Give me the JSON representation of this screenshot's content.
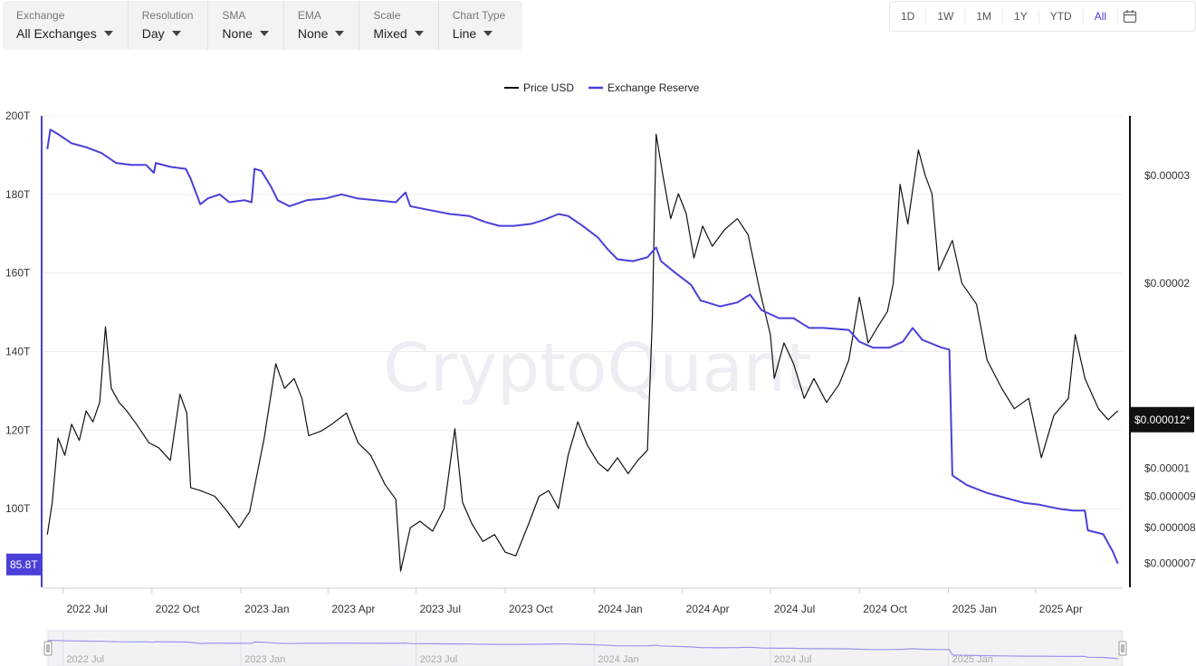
{
  "toolbar": {
    "exchange": {
      "label": "Exchange",
      "value": "All Exchanges"
    },
    "resolution": {
      "label": "Resolution",
      "value": "Day"
    },
    "sma": {
      "label": "SMA",
      "value": "None"
    },
    "ema": {
      "label": "EMA",
      "value": "None"
    },
    "scale": {
      "label": "Scale",
      "value": "Mixed"
    },
    "chart_type": {
      "label": "Chart Type",
      "value": "Line"
    }
  },
  "ranges": [
    "1D",
    "1W",
    "1M",
    "1Y",
    "YTD",
    "All"
  ],
  "active_range": "All",
  "watermark": "CryptoQuant",
  "colors": {
    "reserve": "#4a3fd8",
    "price": "#111111",
    "grid": "#ececec",
    "navigator": "#9b94ea"
  },
  "chart_data": {
    "type": "line",
    "legend": {
      "position": "top-center"
    },
    "left_axis": {
      "ticks": [
        "100T",
        "120T",
        "140T",
        "160T",
        "180T",
        "200T"
      ],
      "tick_values": [
        100,
        120,
        140,
        160,
        180,
        200
      ],
      "range": [
        80,
        200
      ],
      "current_label": "85.8T",
      "current_value": 85.8
    },
    "right_axis": {
      "scale": "log",
      "ticks": [
        "$0.000007",
        "$0.000008",
        "$0.000009",
        "$0.00001",
        "$0.00002",
        "$0.00003"
      ],
      "tick_values": [
        7e-06,
        8e-06,
        9e-06,
        1e-05,
        2e-05,
        3e-05
      ],
      "range": [
        6.4e-06,
        3.75e-05
      ],
      "current_label": "$0.000012*",
      "current_value": 1.2e-05
    },
    "x_ticks": [
      "2022 Jul",
      "2022 Oct",
      "2023 Jan",
      "2023 Apr",
      "2023 Jul",
      "2023 Oct",
      "2024 Jan",
      "2024 Apr",
      "2024 Jul",
      "2024 Oct",
      "2025 Jan",
      "2025 Apr"
    ],
    "x_tick_values": [
      "2022-07-01",
      "2022-10-01",
      "2023-01-01",
      "2023-04-01",
      "2023-07-01",
      "2023-10-01",
      "2024-01-01",
      "2024-04-01",
      "2024-07-01",
      "2024-10-01",
      "2025-01-01",
      "2025-04-01"
    ],
    "x_range": [
      "2022-06-10",
      "2025-06-30"
    ],
    "navigator_ticks": [
      "2022 Jul",
      "2023 Jan",
      "2023 Jul",
      "2024 Jan",
      "2024 Jul",
      "2025 Jan"
    ],
    "navigator_tick_values": [
      "2022-07-01",
      "2023-01-01",
      "2023-07-01",
      "2024-01-01",
      "2024-07-01",
      "2025-01-01"
    ],
    "series": [
      {
        "name": "Price USD",
        "axis": "right",
        "points": [
          [
            "2022-06-15",
            7.8e-06
          ],
          [
            "2022-06-20",
            8.8e-06
          ],
          [
            "2022-06-26",
            1.12e-05
          ],
          [
            "2022-07-03",
            1.05e-05
          ],
          [
            "2022-07-10",
            1.18e-05
          ],
          [
            "2022-07-18",
            1.11e-05
          ],
          [
            "2022-07-25",
            1.24e-05
          ],
          [
            "2022-08-01",
            1.19e-05
          ],
          [
            "2022-08-08",
            1.28e-05
          ],
          [
            "2022-08-14",
            1.7e-05
          ],
          [
            "2022-08-20",
            1.35e-05
          ],
          [
            "2022-08-28",
            1.28e-05
          ],
          [
            "2022-09-05",
            1.24e-05
          ],
          [
            "2022-09-15",
            1.18e-05
          ],
          [
            "2022-09-28",
            1.1e-05
          ],
          [
            "2022-10-08",
            1.08e-05
          ],
          [
            "2022-10-20",
            1.03e-05
          ],
          [
            "2022-10-30",
            1.32e-05
          ],
          [
            "2022-11-06",
            1.23e-05
          ],
          [
            "2022-11-10",
            9.3e-06
          ],
          [
            "2022-11-20",
            9.2e-06
          ],
          [
            "2022-12-05",
            9e-06
          ],
          [
            "2022-12-18",
            8.5e-06
          ],
          [
            "2022-12-30",
            8e-06
          ],
          [
            "2023-01-10",
            8.5e-06
          ],
          [
            "2023-01-25",
            1.12e-05
          ],
          [
            "2023-02-06",
            1.48e-05
          ],
          [
            "2023-02-15",
            1.35e-05
          ],
          [
            "2023-02-25",
            1.4e-05
          ],
          [
            "2023-03-05",
            1.3e-05
          ],
          [
            "2023-03-12",
            1.13e-05
          ],
          [
            "2023-03-25",
            1.15e-05
          ],
          [
            "2023-04-05",
            1.18e-05
          ],
          [
            "2023-04-20",
            1.23e-05
          ],
          [
            "2023-05-02",
            1.1e-05
          ],
          [
            "2023-05-15",
            1.05e-05
          ],
          [
            "2023-05-30",
            9.4e-06
          ],
          [
            "2023-06-10",
            8.9e-06
          ],
          [
            "2023-06-15",
            6.8e-06
          ],
          [
            "2023-06-25",
            8e-06
          ],
          [
            "2023-07-05",
            8.2e-06
          ],
          [
            "2023-07-18",
            7.9e-06
          ],
          [
            "2023-07-30",
            8.6e-06
          ],
          [
            "2023-08-10",
            1.16e-05
          ],
          [
            "2023-08-18",
            8.8e-06
          ],
          [
            "2023-08-28",
            8.1e-06
          ],
          [
            "2023-09-08",
            7.6e-06
          ],
          [
            "2023-09-20",
            7.8e-06
          ],
          [
            "2023-10-01",
            7.3e-06
          ],
          [
            "2023-10-12",
            7.2e-06
          ],
          [
            "2023-10-25",
            8.1e-06
          ],
          [
            "2023-11-05",
            9e-06
          ],
          [
            "2023-11-15",
            9.2e-06
          ],
          [
            "2023-11-25",
            8.6e-06
          ],
          [
            "2023-12-05",
            1.05e-05
          ],
          [
            "2023-12-15",
            1.19e-05
          ],
          [
            "2023-12-25",
            1.09e-05
          ],
          [
            "2024-01-05",
            1.02e-05
          ],
          [
            "2024-01-15",
            9.9e-06
          ],
          [
            "2024-01-25",
            1.04e-05
          ],
          [
            "2024-02-05",
            9.8e-06
          ],
          [
            "2024-02-15",
            1.03e-05
          ],
          [
            "2024-02-25",
            1.07e-05
          ],
          [
            "2024-03-01",
            1.75e-05
          ],
          [
            "2024-03-05",
            3.5e-05
          ],
          [
            "2024-03-12",
            3e-05
          ],
          [
            "2024-03-20",
            2.55e-05
          ],
          [
            "2024-03-28",
            2.8e-05
          ],
          [
            "2024-04-05",
            2.6e-05
          ],
          [
            "2024-04-13",
            2.2e-05
          ],
          [
            "2024-04-22",
            2.48e-05
          ],
          [
            "2024-05-02",
            2.3e-05
          ],
          [
            "2024-05-15",
            2.45e-05
          ],
          [
            "2024-05-28",
            2.55e-05
          ],
          [
            "2024-06-08",
            2.4e-05
          ],
          [
            "2024-06-20",
            1.95e-05
          ],
          [
            "2024-07-01",
            1.65e-05
          ],
          [
            "2024-07-05",
            1.4e-05
          ],
          [
            "2024-07-15",
            1.6e-05
          ],
          [
            "2024-07-25",
            1.48e-05
          ],
          [
            "2024-08-05",
            1.3e-05
          ],
          [
            "2024-08-15",
            1.4e-05
          ],
          [
            "2024-08-28",
            1.28e-05
          ],
          [
            "2024-09-10",
            1.37e-05
          ],
          [
            "2024-09-20",
            1.5e-05
          ],
          [
            "2024-10-01",
            1.9e-05
          ],
          [
            "2024-10-10",
            1.6e-05
          ],
          [
            "2024-10-20",
            1.7e-05
          ],
          [
            "2024-10-30",
            1.8e-05
          ],
          [
            "2024-11-05",
            2e-05
          ],
          [
            "2024-11-12",
            2.9e-05
          ],
          [
            "2024-11-20",
            2.5e-05
          ],
          [
            "2024-12-01",
            3.3e-05
          ],
          [
            "2024-12-08",
            3e-05
          ],
          [
            "2024-12-15",
            2.8e-05
          ],
          [
            "2024-12-22",
            2.1e-05
          ],
          [
            "2025-01-05",
            2.35e-05
          ],
          [
            "2025-01-15",
            2e-05
          ],
          [
            "2025-01-30",
            1.85e-05
          ],
          [
            "2025-02-10",
            1.5e-05
          ],
          [
            "2025-02-25",
            1.35e-05
          ],
          [
            "2025-03-10",
            1.25e-05
          ],
          [
            "2025-03-25",
            1.3e-05
          ],
          [
            "2025-04-07",
            1.04e-05
          ],
          [
            "2025-04-20",
            1.22e-05
          ],
          [
            "2025-05-05",
            1.3e-05
          ],
          [
            "2025-05-12",
            1.65e-05
          ],
          [
            "2025-05-22",
            1.4e-05
          ],
          [
            "2025-06-05",
            1.25e-05
          ],
          [
            "2025-06-15",
            1.2e-05
          ],
          [
            "2025-06-25",
            1.24e-05
          ]
        ]
      },
      {
        "name": "Exchange Reserve",
        "axis": "left",
        "points": [
          [
            "2022-06-15",
            191.5
          ],
          [
            "2022-06-18",
            196.5
          ],
          [
            "2022-06-25",
            195.5
          ],
          [
            "2022-07-10",
            193.0
          ],
          [
            "2022-07-25",
            192.0
          ],
          [
            "2022-08-10",
            190.5
          ],
          [
            "2022-08-25",
            188.0
          ],
          [
            "2022-09-10",
            187.5
          ],
          [
            "2022-09-25",
            187.5
          ],
          [
            "2022-10-03",
            185.5
          ],
          [
            "2022-10-05",
            188.0
          ],
          [
            "2022-10-20",
            187.0
          ],
          [
            "2022-11-05",
            186.5
          ],
          [
            "2022-11-10",
            184.0
          ],
          [
            "2022-11-20",
            177.5
          ],
          [
            "2022-11-28",
            179.0
          ],
          [
            "2022-12-10",
            180.0
          ],
          [
            "2022-12-20",
            178.0
          ],
          [
            "2023-01-05",
            178.5
          ],
          [
            "2023-01-12",
            178.0
          ],
          [
            "2023-01-15",
            186.5
          ],
          [
            "2023-01-22",
            186.0
          ],
          [
            "2023-02-01",
            182.0
          ],
          [
            "2023-02-08",
            178.5
          ],
          [
            "2023-02-20",
            177.0
          ],
          [
            "2023-03-10",
            178.5
          ],
          [
            "2023-03-30",
            179.0
          ],
          [
            "2023-04-15",
            180.0
          ],
          [
            "2023-05-01",
            179.0
          ],
          [
            "2023-05-20",
            178.5
          ],
          [
            "2023-06-10",
            178.0
          ],
          [
            "2023-06-20",
            180.5
          ],
          [
            "2023-06-25",
            177.0
          ],
          [
            "2023-07-15",
            176.0
          ],
          [
            "2023-08-05",
            175.0
          ],
          [
            "2023-08-25",
            174.5
          ],
          [
            "2023-09-10",
            173.0
          ],
          [
            "2023-09-25",
            172.0
          ],
          [
            "2023-10-10",
            172.0
          ],
          [
            "2023-10-28",
            172.5
          ],
          [
            "2023-11-10",
            173.5
          ],
          [
            "2023-11-25",
            175.0
          ],
          [
            "2023-12-05",
            174.5
          ],
          [
            "2023-12-20",
            172.0
          ],
          [
            "2024-01-05",
            169.0
          ],
          [
            "2024-01-15",
            166.0
          ],
          [
            "2024-01-25",
            163.5
          ],
          [
            "2024-02-10",
            163.0
          ],
          [
            "2024-02-25",
            164.0
          ],
          [
            "2024-03-05",
            166.5
          ],
          [
            "2024-03-10",
            163.0
          ],
          [
            "2024-03-25",
            160.0
          ],
          [
            "2024-04-10",
            157.0
          ],
          [
            "2024-04-20",
            153.0
          ],
          [
            "2024-05-10",
            151.5
          ],
          [
            "2024-05-28",
            152.5
          ],
          [
            "2024-06-10",
            154.5
          ],
          [
            "2024-06-22",
            150.5
          ],
          [
            "2024-07-10",
            148.5
          ],
          [
            "2024-07-25",
            148.5
          ],
          [
            "2024-08-10",
            146.0
          ],
          [
            "2024-08-25",
            146.0
          ],
          [
            "2024-09-20",
            145.5
          ],
          [
            "2024-10-01",
            142.5
          ],
          [
            "2024-10-15",
            141.0
          ],
          [
            "2024-11-01",
            141.0
          ],
          [
            "2024-11-15",
            142.5
          ],
          [
            "2024-11-25",
            146.0
          ],
          [
            "2024-12-05",
            143.0
          ],
          [
            "2024-12-25",
            141.0
          ],
          [
            "2025-01-02",
            140.5
          ],
          [
            "2025-01-05",
            108.5
          ],
          [
            "2025-01-20",
            106.0
          ],
          [
            "2025-02-10",
            104.0
          ],
          [
            "2025-02-25",
            103.0
          ],
          [
            "2025-03-20",
            101.5
          ],
          [
            "2025-04-05",
            101.0
          ],
          [
            "2025-04-25",
            100.0
          ],
          [
            "2025-05-10",
            99.5
          ],
          [
            "2025-05-22",
            99.5
          ],
          [
            "2025-05-25",
            94.5
          ],
          [
            "2025-06-10",
            93.5
          ],
          [
            "2025-06-20",
            89.0
          ],
          [
            "2025-06-25",
            86.0
          ]
        ]
      }
    ]
  }
}
